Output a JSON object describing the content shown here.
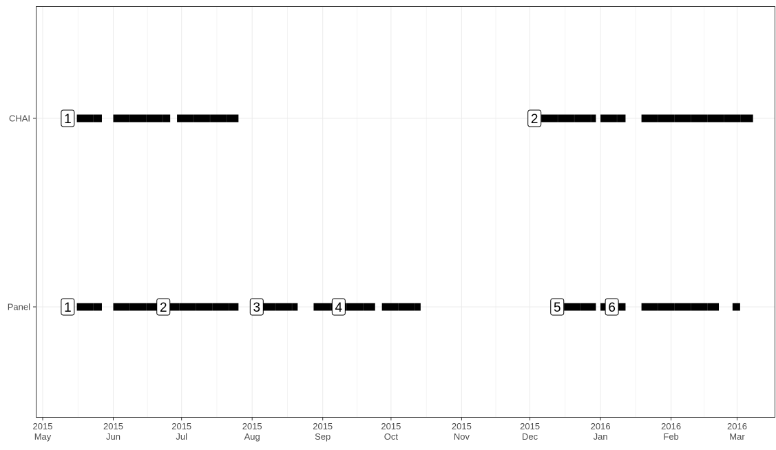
{
  "chart_data": {
    "type": "scatter",
    "title": "",
    "xlabel": "",
    "ylabel": "",
    "x_axis": {
      "type": "date",
      "range": [
        "2015-05-01",
        "2016-03-15"
      ],
      "ticks": [
        {
          "date": "2015-05-01",
          "year": "2015",
          "month": "May"
        },
        {
          "date": "2015-06-01",
          "year": "2015",
          "month": "Jun"
        },
        {
          "date": "2015-07-01",
          "year": "2015",
          "month": "Jul"
        },
        {
          "date": "2015-08-01",
          "year": "2015",
          "month": "Aug"
        },
        {
          "date": "2015-09-01",
          "year": "2015",
          "month": "Sep"
        },
        {
          "date": "2015-10-01",
          "year": "2015",
          "month": "Oct"
        },
        {
          "date": "2015-11-01",
          "year": "2015",
          "month": "Nov"
        },
        {
          "date": "2015-12-01",
          "year": "2015",
          "month": "Dec"
        },
        {
          "date": "2016-01-01",
          "year": "2016",
          "month": "Jan"
        },
        {
          "date": "2016-02-01",
          "year": "2016",
          "month": "Feb"
        },
        {
          "date": "2016-03-01",
          "year": "2016",
          "month": "Mar"
        }
      ]
    },
    "categories": [
      "CHAI",
      "Panel"
    ],
    "grid": true,
    "colors": {
      "points": "#000000",
      "grid": "#ebebeb",
      "axis": "#333333",
      "label_fill": "#ffffff"
    },
    "series": [
      {
        "name": "CHAI",
        "segments": [
          [
            "2015-05-16",
            "2015-05-27"
          ],
          [
            "2015-06-01",
            "2015-06-26"
          ],
          [
            "2015-06-29",
            "2015-07-26"
          ],
          [
            "2015-12-06",
            "2015-12-30"
          ],
          [
            "2016-01-01",
            "2016-01-12"
          ],
          [
            "2016-01-19",
            "2016-03-08"
          ]
        ],
        "labels": [
          {
            "text": "1",
            "date": "2015-05-12"
          },
          {
            "text": "2",
            "date": "2015-12-03"
          }
        ]
      },
      {
        "name": "Panel",
        "segments": [
          [
            "2015-05-16",
            "2015-05-27"
          ],
          [
            "2015-06-01",
            "2015-07-26"
          ],
          [
            "2015-08-04",
            "2015-08-21"
          ],
          [
            "2015-08-28",
            "2015-09-24"
          ],
          [
            "2015-09-27",
            "2015-10-14"
          ],
          [
            "2015-12-16",
            "2015-12-30"
          ],
          [
            "2016-01-01",
            "2016-01-12"
          ],
          [
            "2016-01-19",
            "2016-02-22"
          ],
          [
            "2016-02-28",
            "2016-03-02"
          ]
        ],
        "labels": [
          {
            "text": "1",
            "date": "2015-05-12"
          },
          {
            "text": "2",
            "date": "2015-06-23"
          },
          {
            "text": "3",
            "date": "2015-08-03"
          },
          {
            "text": "4",
            "date": "2015-09-08"
          },
          {
            "text": "5",
            "date": "2015-12-13"
          },
          {
            "text": "6",
            "date": "2016-01-06"
          }
        ]
      }
    ]
  }
}
